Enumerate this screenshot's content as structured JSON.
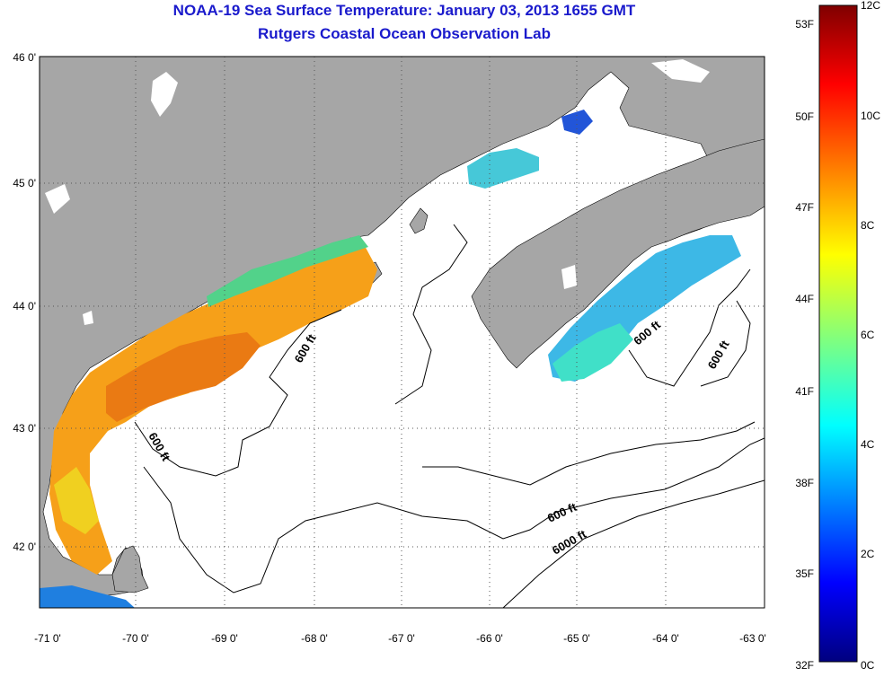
{
  "title_line1": "NOAA-19 Sea Surface Temperature:  January 03, 2013 1655 GMT",
  "title_line2": "Rutgers Coastal Ocean Observation Lab",
  "map": {
    "lat_ticks": [
      "46 0'",
      "45 0'",
      "44 0'",
      "43 0'",
      "42 0'"
    ],
    "lon_ticks": [
      "-71 0'",
      "-70 0'",
      "-69 0'",
      "-68 0'",
      "-67 0'",
      "-66 0'",
      "-65 0'",
      "-64 0'",
      "-63 0'"
    ],
    "contour_labels": [
      "600 ft",
      "600 ft",
      "600 ft",
      "600 ft",
      "600 ft",
      "6000 ft"
    ],
    "colors": {
      "land": "#a6a6a6",
      "ocean": "#ffffff"
    }
  },
  "colorbar": {
    "fahrenheit": [
      "53F",
      "50F",
      "47F",
      "44F",
      "41F",
      "38F",
      "35F",
      "32F"
    ],
    "celsius": [
      "12C",
      "10C",
      "8C",
      "6C",
      "4C",
      "2C",
      "0C"
    ],
    "range_c": [
      0,
      12
    ]
  }
}
